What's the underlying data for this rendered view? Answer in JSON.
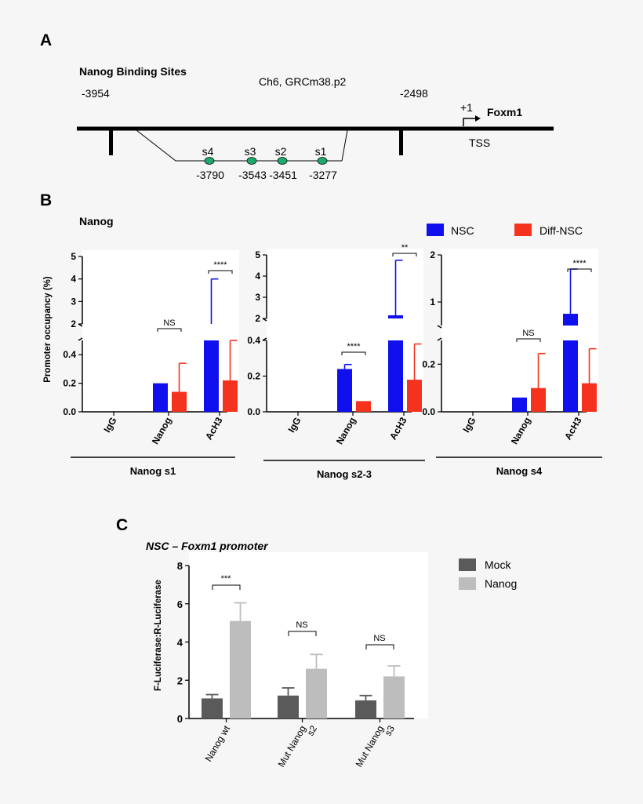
{
  "panels": {
    "a": "A",
    "b": "B",
    "c": "C"
  },
  "panel_a": {
    "title": "Nanog Binding Sites",
    "chromosome": "Ch6, GRCm38.p2",
    "left_coord": "-3954",
    "right_coord": "-2498",
    "tss_plus": "+1",
    "gene": "Foxm1",
    "tss_label": "TSS",
    "sites": [
      {
        "name": "s4",
        "position": "-3790"
      },
      {
        "name": "s3",
        "position": "-3543"
      },
      {
        "name": "s2",
        "position": "-3451"
      },
      {
        "name": "s1",
        "position": "-3277"
      }
    ]
  },
  "chart_data": [
    {
      "type": "bar",
      "title": "Nanog",
      "ylabel": "Promoter occupancy (%)",
      "xlabel": "Nanog s1",
      "categories": [
        "IgG",
        "Nanog",
        "AcH3"
      ],
      "legend_position": "top-right",
      "series": [
        {
          "name": "NSC",
          "values": [
            0,
            0.2,
            1.9
          ],
          "errors": [
            0,
            0,
            2.1
          ]
        },
        {
          "name": "Diff-NSC",
          "values": [
            0,
            0.14,
            0.22
          ],
          "errors": [
            0,
            0.2,
            0.28
          ]
        }
      ],
      "broken_axis": {
        "lower_range": [
          0,
          0.5
        ],
        "upper_range": [
          2,
          5
        ]
      },
      "lower_ticks": [
        "0.0",
        "0.2",
        "0.4"
      ],
      "upper_ticks": [
        "2",
        "3",
        "4",
        "5"
      ],
      "significance": [
        {
          "category": "Nanog",
          "label": "NS"
        },
        {
          "category": "AcH3",
          "label": "****"
        }
      ]
    },
    {
      "type": "bar",
      "xlabel": "Nanog s2-3",
      "categories": [
        "IgG",
        "Nanog",
        "AcH3"
      ],
      "series": [
        {
          "name": "NSC",
          "values": [
            0,
            0.24,
            2.15
          ],
          "errors": [
            0,
            0.025,
            2.6
          ]
        },
        {
          "name": "Diff-NSC",
          "values": [
            0,
            0.06,
            0.18
          ],
          "errors": [
            0,
            0,
            0.2
          ]
        }
      ],
      "broken_axis": {
        "lower_range": [
          0,
          0.4
        ],
        "upper_range": [
          2,
          5
        ]
      },
      "lower_ticks": [
        "0.0",
        "0.2",
        "0.4"
      ],
      "upper_ticks": [
        "2",
        "3",
        "4",
        "5"
      ],
      "significance": [
        {
          "category": "Nanog",
          "label": "****"
        },
        {
          "category": "AcH3",
          "label": "**"
        }
      ]
    },
    {
      "type": "bar",
      "xlabel": "Nanog s4",
      "categories": [
        "IgG",
        "Nanog",
        "AcH3"
      ],
      "series": [
        {
          "name": "NSC",
          "values": [
            0,
            0.06,
            0.75
          ],
          "errors": [
            0,
            0,
            0.95
          ]
        },
        {
          "name": "Diff-NSC",
          "values": [
            0,
            0.1,
            0.12
          ],
          "errors": [
            0,
            0.145,
            0.145
          ]
        }
      ],
      "broken_axis": {
        "lower_range": [
          0,
          0.3
        ],
        "upper_range": [
          0.5,
          2
        ]
      },
      "lower_ticks": [
        "0.0",
        "0.2"
      ],
      "upper_ticks": [
        "1",
        "2"
      ],
      "significance": [
        {
          "category": "Nanog",
          "label": "NS"
        },
        {
          "category": "AcH3",
          "label": "****"
        }
      ]
    },
    {
      "type": "bar",
      "title": "NSC – Foxm1 promoter",
      "ylabel": "F-Luciferase:R-Luciferase",
      "categories": [
        "Nanog wt",
        "Mut Nanog s2",
        "Mut Nanog s3"
      ],
      "category_lines": [
        [
          "Nanog wt"
        ],
        [
          "Mut Nanog",
          "s2"
        ],
        [
          "Mut Nanog",
          "s3"
        ]
      ],
      "legend_position": "top-right",
      "ylim": [
        0,
        8
      ],
      "yticks": [
        "0",
        "2",
        "4",
        "6",
        "8"
      ],
      "series": [
        {
          "name": "Mock",
          "values": [
            1.05,
            1.2,
            0.95
          ],
          "errors": [
            0.2,
            0.4,
            0.25
          ]
        },
        {
          "name": "Nanog",
          "values": [
            5.1,
            2.6,
            2.2
          ],
          "errors": [
            0.95,
            0.75,
            0.55
          ]
        }
      ],
      "significance": [
        {
          "category": "Nanog wt",
          "label": "***"
        },
        {
          "category": "Mut Nanog s2",
          "label": "NS"
        },
        {
          "category": "Mut Nanog s3",
          "label": "NS"
        }
      ]
    }
  ],
  "colors": {
    "nsc": "#1010ee",
    "diff_nsc": "#f5321e",
    "mock": "#5a5a5a",
    "nanog": "#bdbdbd",
    "site_dot": "#1faa6b"
  }
}
